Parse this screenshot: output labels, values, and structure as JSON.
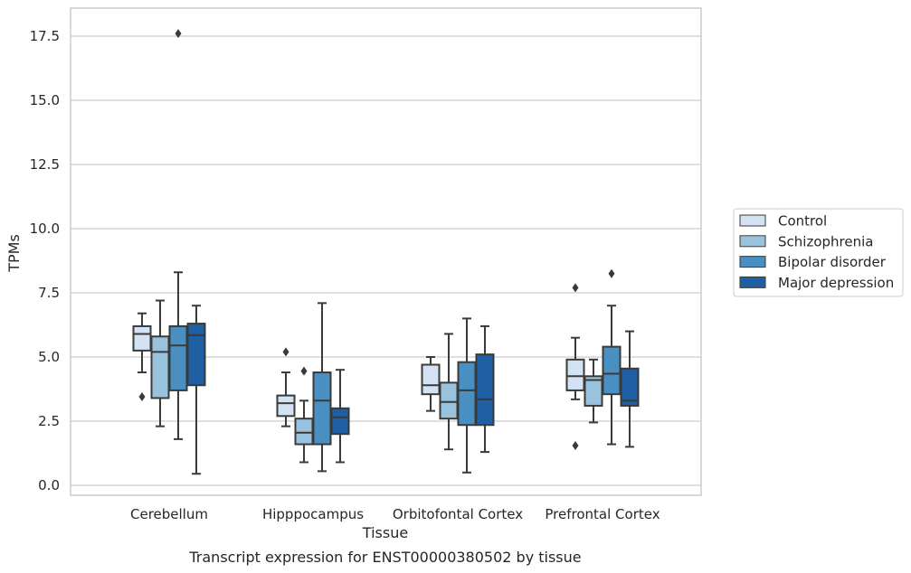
{
  "chart_data": {
    "type": "boxplot",
    "title": "",
    "xlabel": "Tissue",
    "ylabel": "TPMs",
    "caption": "Transcript expression for ENST00000380502 by tissue",
    "ylim": [
      -0.4,
      18.5
    ],
    "yticks": [
      0.0,
      2.5,
      5.0,
      7.5,
      10.0,
      12.5,
      15.0,
      17.5
    ],
    "ytick_labels": [
      "0.0",
      "2.5",
      "5.0",
      "7.5",
      "10.0",
      "12.5",
      "15.0",
      "17.5"
    ],
    "grid": "horizontal",
    "legend_position": "right",
    "categories": [
      "Cerebellum",
      "Hipppocampus",
      "Orbitofontal Cortex",
      "Prefrontal Cortex"
    ],
    "series": [
      {
        "name": "Control",
        "color": "#d4e3f3",
        "boxes": [
          {
            "whisker_low": 4.4,
            "q1": 5.25,
            "median": 5.9,
            "q3": 6.2,
            "whisker_high": 6.7,
            "outliers": [
              3.45
            ]
          },
          {
            "whisker_low": 2.3,
            "q1": 2.7,
            "median": 3.2,
            "q3": 3.5,
            "whisker_high": 4.4,
            "outliers": [
              5.2
            ]
          },
          {
            "whisker_low": 2.9,
            "q1": 3.55,
            "median": 3.9,
            "q3": 4.7,
            "whisker_high": 5.0,
            "outliers": []
          },
          {
            "whisker_low": 3.35,
            "q1": 3.7,
            "median": 4.25,
            "q3": 4.9,
            "whisker_high": 5.75,
            "outliers": [
              7.7,
              1.55
            ]
          }
        ]
      },
      {
        "name": "Schizophrenia",
        "color": "#99c3dd",
        "boxes": [
          {
            "whisker_low": 2.3,
            "q1": 3.4,
            "median": 5.2,
            "q3": 5.8,
            "whisker_high": 7.2,
            "outliers": []
          },
          {
            "whisker_low": 0.9,
            "q1": 1.6,
            "median": 2.05,
            "q3": 2.6,
            "whisker_high": 3.3,
            "outliers": [
              4.45
            ]
          },
          {
            "whisker_low": 1.4,
            "q1": 2.6,
            "median": 3.25,
            "q3": 4.0,
            "whisker_high": 5.9,
            "outliers": []
          },
          {
            "whisker_low": 2.45,
            "q1": 3.1,
            "median": 4.1,
            "q3": 4.25,
            "whisker_high": 4.9,
            "outliers": []
          }
        ]
      },
      {
        "name": "Bipolar disorder",
        "color": "#4a8fc2",
        "boxes": [
          {
            "whisker_low": 1.8,
            "q1": 3.7,
            "median": 5.45,
            "q3": 6.2,
            "whisker_high": 8.3,
            "outliers": [
              17.6
            ]
          },
          {
            "whisker_low": 0.55,
            "q1": 1.6,
            "median": 3.3,
            "q3": 4.4,
            "whisker_high": 7.1,
            "outliers": []
          },
          {
            "whisker_low": 0.5,
            "q1": 2.35,
            "median": 3.7,
            "q3": 4.8,
            "whisker_high": 6.5,
            "outliers": []
          },
          {
            "whisker_low": 1.6,
            "q1": 3.55,
            "median": 4.35,
            "q3": 5.4,
            "whisker_high": 7.0,
            "outliers": [
              8.25
            ]
          }
        ]
      },
      {
        "name": "Major depression",
        "color": "#1f5fa3",
        "boxes": [
          {
            "whisker_low": 0.45,
            "q1": 3.9,
            "median": 5.85,
            "q3": 6.3,
            "whisker_high": 7.0,
            "outliers": []
          },
          {
            "whisker_low": 0.9,
            "q1": 2.0,
            "median": 2.65,
            "q3": 3.0,
            "whisker_high": 4.5,
            "outliers": []
          },
          {
            "whisker_low": 1.3,
            "q1": 2.35,
            "median": 3.35,
            "q3": 5.1,
            "whisker_high": 6.2,
            "outliers": []
          },
          {
            "whisker_low": 1.5,
            "q1": 3.1,
            "median": 3.3,
            "q3": 4.55,
            "whisker_high": 6.0,
            "outliers": []
          }
        ]
      }
    ]
  }
}
